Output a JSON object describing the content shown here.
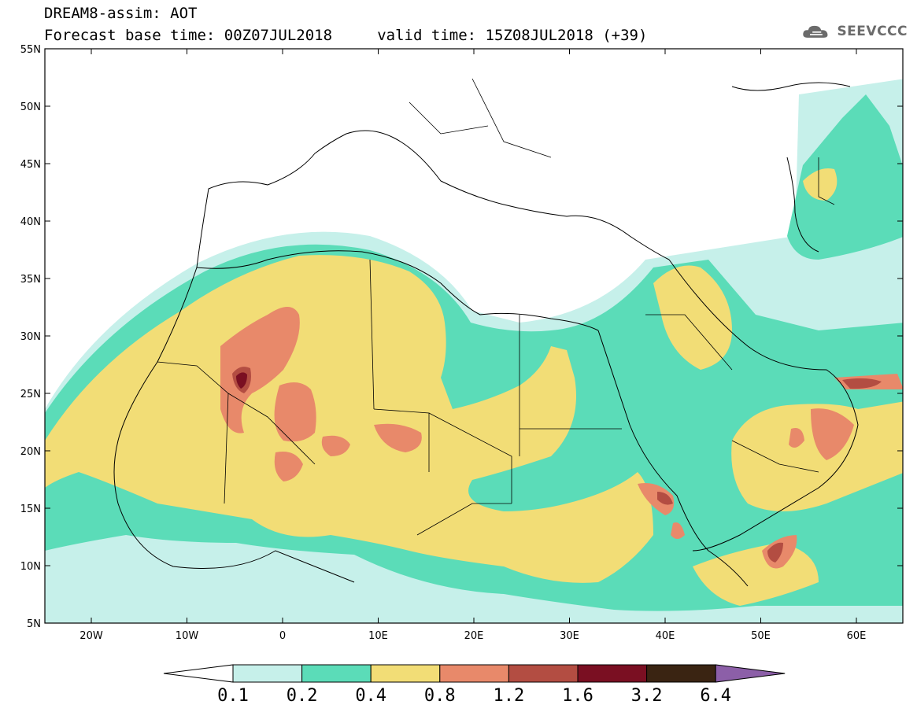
{
  "title": {
    "line1": "DREAM8-assim: AOT",
    "line2": "Forecast base time: 00Z07JUL2018     valid time: 15Z08JUL2018 (+39)"
  },
  "logo": {
    "text": "SEEVCCC",
    "icon": "cloud-icon"
  },
  "map": {
    "lat_labels": [
      "55N",
      "50N",
      "45N",
      "40N",
      "35N",
      "30N",
      "25N",
      "20N",
      "15N",
      "10N",
      "5N"
    ],
    "lon_labels": [
      "20W",
      "10W",
      "0",
      "10E",
      "20E",
      "30E",
      "40E",
      "50E",
      "60E"
    ],
    "colors": {
      "c01": "#c6f0ea",
      "c02": "#5bdcb8",
      "c04": "#f2dd76",
      "c08": "#e8896a",
      "c12": "#b34d42",
      "c16": "#7a0f22",
      "c32": "#3a2412",
      "c64": "#8c5fa8",
      "border": "#000000"
    }
  },
  "colorbar": {
    "labels": [
      "0.1",
      "0.2",
      "0.4",
      "0.8",
      "1.2",
      "1.6",
      "3.2",
      "6.4"
    ],
    "colors": [
      "#c6f0ea",
      "#5bdcb8",
      "#f2dd76",
      "#e8896a",
      "#b34d42",
      "#7a0f22",
      "#3a2412"
    ],
    "under_color": "#ffffff",
    "over_color": "#8c5fa8"
  }
}
